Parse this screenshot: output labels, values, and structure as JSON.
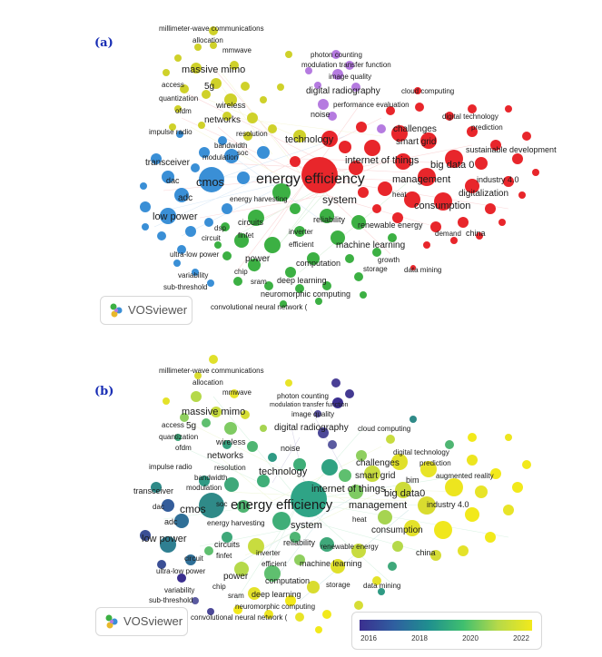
{
  "panel_a": {
    "label": "(a)",
    "vosviewer": "VOSviewer",
    "keywords": {
      "mmwc": "millimeter-wave communications",
      "allocation": "allocation",
      "mmwave": "mmwave",
      "massive_mimo": "massive mimo",
      "access": "access",
      "fiveg": "5g",
      "quantization": "quantization",
      "ofdm": "ofdm",
      "wireless": "wireless",
      "networks": "networks",
      "resolution": "resolution",
      "impulse_radio": "impulse radio",
      "bandwidth": "bandwidth",
      "modulation": "modulation",
      "transceiver": "transceiver",
      "soc": "soc",
      "cmos": "cmos",
      "dac": "dac",
      "adc": "adc",
      "low_power": "low power",
      "energy_harvesting": "energy harvesting",
      "circuits": "circuits",
      "dsp": "dsp",
      "circuit": "circuit",
      "finfet": "finfet",
      "ultra_low_power": "ultra-low power",
      "power": "power",
      "chip": "chip",
      "variability": "variability",
      "sub_threshold": "sub-threshold",
      "sram": "sram",
      "deep_learning": "deep learning",
      "neuromorphic": "neuromorphic computing",
      "cnn": "convolutional neural network (",
      "photon_counting": "photon counting",
      "mtf": "modulation transfer function",
      "image_quality": "image quality",
      "digital_radiography": "digital radiography",
      "performance_evaluation": "performance evaluation",
      "noise": "noise",
      "cloud_computing": "cloud computing",
      "digital_technology": "digital technology",
      "prediction": "prediction",
      "technology": "technology",
      "challenges": "challenges",
      "smart_grid": "smart grid",
      "iot": "internet of things",
      "big_data": "big data 0",
      "sustainable_development": "sustainable development",
      "energy_efficiency": "energy efficiency",
      "management": "management",
      "industry40": "industry 4.0",
      "heat": "heat",
      "system": "system",
      "consumption": "consumption",
      "digitalization": "digitalization",
      "reliability": "reliability",
      "renewable_energy": "renewable energy",
      "inverter": "inverter",
      "efficient": "efficient",
      "machine_learning": "machine learning",
      "demand": "demand",
      "china": "china",
      "computation": "computation",
      "growth": "growth",
      "storage": "storage",
      "data_mining": "data mining"
    }
  },
  "panel_b": {
    "label": "(b)",
    "vosviewer": "VOSviewer",
    "legend_ticks": [
      "2016",
      "2018",
      "2020",
      "2022"
    ],
    "keywords": {
      "mmwc": "millimeter-wave communications",
      "allocation": "allocation",
      "mmwave": "mmwave",
      "massive_mimo": "massive mimo",
      "access": "access",
      "fiveg": "5g",
      "quantization": "quantization",
      "ofdm": "ofdm",
      "wireless": "wireless",
      "networks": "networks",
      "resolution": "resolution",
      "impulse_radio": "impulse radio",
      "bandwidth": "bandwidth",
      "modulation": "modulation",
      "transceiver": "transceiver",
      "soc": "soc",
      "cmos": "cmos",
      "dac": "dac",
      "adc": "adc",
      "low_power": "low power",
      "energy_harvesting": "energy harvesting",
      "circuits": "circuits",
      "circuit": "circuit",
      "finfet": "finfet",
      "ultra_low_power": "ultra-low power",
      "power": "power",
      "chip": "chip",
      "variability": "variability",
      "sub_threshold": "sub-threshold",
      "sram": "sram",
      "deep_learning": "deep learning",
      "neuromorphic": "neuromorphic computing",
      "cnn": "convolutional neural network (",
      "photon_counting": "photon counting",
      "mtf": "modulation transfer function",
      "image_quality": "image quality",
      "digital_radiography": "digital radiography",
      "noise": "noise",
      "cloud_computing": "cloud computing",
      "digital_technology": "digital technology",
      "prediction": "prediction",
      "technology": "technology",
      "challenges": "challenges",
      "smart_grid": "smart grid",
      "bim": "bim",
      "augmented_reality": "augmented reality",
      "iot": "internet of things",
      "big_data": "big data0",
      "energy_efficiency": "energy efficiency",
      "management": "management",
      "industry40": "industry 4.0",
      "heat": "heat",
      "system": "system",
      "consumption": "consumption",
      "reliability": "reliability",
      "renewable_energy": "renewable energy",
      "inverter": "inverter",
      "efficient": "efficient",
      "machine_learning": "machine learning",
      "china": "china",
      "computation": "computation",
      "storage": "storage",
      "data_mining": "data mining"
    }
  },
  "colors": {
    "label_blue": "#1a2fb5",
    "cluster_red": "#e8262b",
    "cluster_blue": "#3a8fd6",
    "cluster_green": "#3cb043",
    "cluster_yellow": "#cfd12a",
    "cluster_purple": "#b57be0"
  }
}
